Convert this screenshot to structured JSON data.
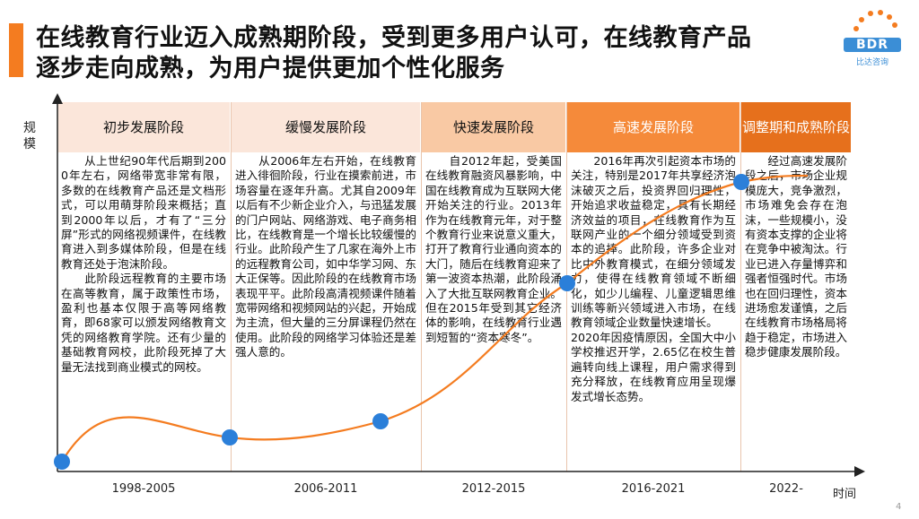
{
  "title_line1": "在线教育行业迈入成熟期阶段，受到更多用户认可，在线教育产品",
  "title_line2": "逐步走向成熟，为用户提供更加个性化服务",
  "logo": {
    "text": "BDR",
    "sub": "比达咨询"
  },
  "axes": {
    "y_label": "规模",
    "x_label": "时间"
  },
  "page_number": "4",
  "colors": {
    "accent": "#f47c20",
    "curve": "#f47c20",
    "dot": "#2b7fd9"
  },
  "phases": [
    {
      "name": "初步发展阶段",
      "years": "1998-2005",
      "text": "　　从上世纪90年代后期到2000年左右，网络带宽非常有限，多数的在线教育产品还是文档形式，可以用萌芽阶段来概括；直到2000年以后，才有了“三分屏”形式的网络视频课件，在线教育进入到多媒体阶段，但是在线教育还处于泡沫阶段。\n　　此阶段远程教育的主要市场在高等教育，属于政策性市场，盈利也基本仅限于高等网络教育，即68家可以颁发网络教育文凭的网络教育学院。还有少量的基础教育网校，此阶段死掉了大量无法找到商业模式的网校。"
    },
    {
      "name": "缓慢发展阶段",
      "years": "2006-2011",
      "text": "　　从2006年左右开始，在线教育进入徘徊阶段，行业在摸索前进，市场容量在逐年升高。尤其自2009年以后有不少新企业介入，与迅猛发展的门户网站、网络游戏、电子商务相比，在线教育是一个增长比较缓慢的行业。此阶段产生了几家在海外上市的远程教育公司，如中华学习网、东大正保等。因此阶段的在线教育市场表现平平。此阶段高清视频课件随着宽带网络和视频网站的兴起，开始成为主流，但大量的三分屏课程仍然在使用。此阶段的网络学习体验还是差强人意的。"
    },
    {
      "name": "快速发展阶段",
      "years": "2012-2015",
      "text": "　　自2012年起，受美国在线教育融资风暴影响，中国在线教育成为互联网大佬开始关注的行业。2013年作为在线教育元年，对于整个教育行业来说意义重大，打开了教育行业通向资本的大门，随后在线教育迎来了第一波资本热潮，此阶段涌入了大批互联网教育企业。但在2015年受到其它经济体的影响，在线教育行业遇到短暂的“资本寒冬”。"
    },
    {
      "name": "高速发展阶段",
      "years": "2016-2021",
      "text": "　　2016年再次引起资本市场的关注，特别是2017年共享经济泡沫破灭之后，投资界回归理性，开始追求收益稳定，具有长期经济效益的项目，在线教育作为互联网产业的一个细分领域受到资本的追捧。此阶段，许多企业对比中外教育模式，在细分领域发力，使得在线教育领域不断细化，如少儿编程、儿童逻辑思维训练等新兴领域进入市场，在线教育领域企业数量快速增长。\n2020年因疫情原因，全国大中小学校推迟开学，2.65亿在校生普遍转向线上课程，用户需求得到充分释放，在线教育应用呈现爆发式增长态势。"
    },
    {
      "name": "调整期和成熟阶段",
      "years": "2022-",
      "text": "　　经过高速发展阶段之后，市场企业规模庞大，竞争激烈，市场难免会存在泡沫，一些规模小，没有资本支撑的企业将在竞争中被淘汰。行业已进入存量博弈和强者恒强时代。市场也在回归理性，资本进场愈发谨慎，之后在线教育市场格局将趋于稳定，市场进入稳步健康发展阶段。"
    }
  ]
}
